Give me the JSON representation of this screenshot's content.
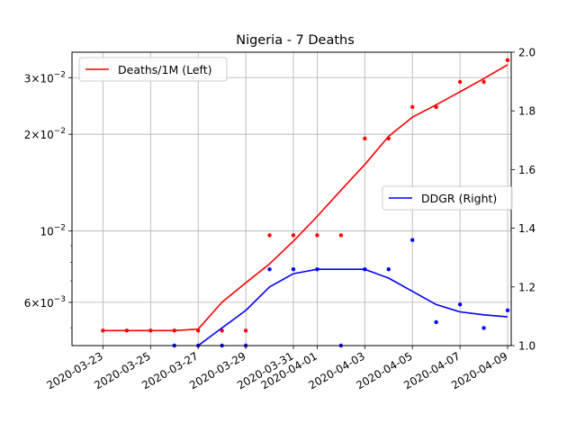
{
  "chart_data": {
    "type": "line",
    "title": "Nigeria - 7 Deaths",
    "xlabel": "",
    "ylabel_left": "",
    "ylabel_right": "",
    "x_tick_labels": [
      "2020-03-23",
      "2020-03-25",
      "2020-03-27",
      "2020-03-29",
      "2020-03-31",
      "2020-04-01",
      "2020-04-03",
      "2020-04-05",
      "2020-04-07",
      "2020-04-09"
    ],
    "left_axis": {
      "scale": "log",
      "range": [
        0.0044,
        0.036
      ],
      "tick_labels": [
        "$6\\times10^{-3}$",
        "$10^{-2}$",
        "$2\\times10^{-2}$",
        "$3\\times10^{-2}$"
      ],
      "tick_display": [
        {
          "value": 0.006,
          "mantissa": "6",
          "exp": "−3",
          "mult": true
        },
        {
          "value": 0.01,
          "mantissa": "",
          "exp": "−2",
          "mult": false
        },
        {
          "value": 0.02,
          "mantissa": "2",
          "exp": "−2",
          "mult": true
        },
        {
          "value": 0.03,
          "mantissa": "3",
          "exp": "−2",
          "mult": true
        }
      ]
    },
    "right_axis": {
      "scale": "linear",
      "range": [
        1.0,
        2.0
      ],
      "tick_labels": [
        "1.0",
        "1.2",
        "1.4",
        "1.6",
        "1.8",
        "2.0"
      ]
    },
    "grid": true,
    "series": [
      {
        "name": "Deaths/1M (Left)",
        "axis": "left",
        "color": "#ff0000",
        "dates": [
          "2020-03-23",
          "2020-03-24",
          "2020-03-25",
          "2020-03-26",
          "2020-03-27",
          "2020-03-28",
          "2020-03-29",
          "2020-03-30",
          "2020-03-31",
          "2020-04-01",
          "2020-04-02",
          "2020-04-03",
          "2020-04-04",
          "2020-04-05",
          "2020-04-06",
          "2020-04-07",
          "2020-04-08",
          "2020-04-09"
        ],
        "points": [
          0.0049,
          0.0049,
          0.0049,
          0.0049,
          0.0049,
          0.0049,
          0.0049,
          0.0097,
          0.0097,
          0.0097,
          0.0097,
          0.0194,
          0.0194,
          0.0243,
          0.0243,
          0.0291,
          0.0291,
          0.034
        ],
        "line": [
          0.0049,
          0.0049,
          0.0049,
          0.0049,
          0.00495,
          0.006,
          0.0069,
          0.0079,
          0.0093,
          0.0111,
          0.0134,
          0.0161,
          0.0197,
          0.0226,
          0.0247,
          0.0271,
          0.0298,
          0.0329
        ]
      },
      {
        "name": "DDGR (Right)",
        "axis": "right",
        "color": "#0000ff",
        "dates": [
          "2020-03-23",
          "2020-03-24",
          "2020-03-25",
          "2020-03-26",
          "2020-03-27",
          "2020-03-28",
          "2020-03-29",
          "2020-03-30",
          "2020-03-31",
          "2020-04-01",
          "2020-04-02",
          "2020-04-03",
          "2020-04-04",
          "2020-04-05",
          "2020-04-06",
          "2020-04-07",
          "2020-04-08",
          "2020-04-09"
        ],
        "points": [
          null,
          null,
          null,
          1.0,
          1.0,
          1.0,
          1.0,
          1.26,
          1.26,
          1.26,
          1.0,
          1.26,
          1.26,
          1.36,
          1.08,
          1.14,
          1.06,
          1.12
        ],
        "line": [
          null,
          null,
          null,
          null,
          1.0,
          1.06,
          1.12,
          1.2,
          1.245,
          1.26,
          1.26,
          1.26,
          1.23,
          1.185,
          1.14,
          1.115,
          1.105,
          1.098
        ]
      }
    ],
    "legend": [
      {
        "label": "Deaths/1M (Left)",
        "placement": "upper-left"
      },
      {
        "label": "DDGR (Right)",
        "placement": "center-right"
      }
    ]
  }
}
